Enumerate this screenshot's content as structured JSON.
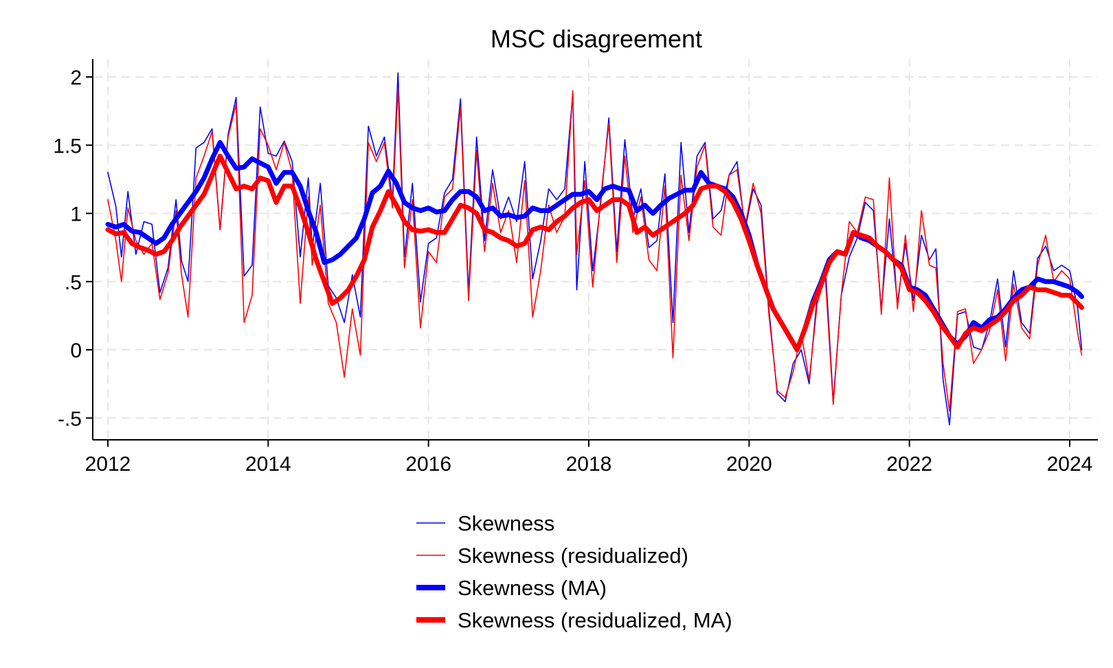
{
  "chart_data": {
    "type": "line",
    "title": "MSC disagreement",
    "xlabel": "",
    "ylabel": "",
    "xlim": [
      2012,
      2024.25
    ],
    "ylim": [
      -0.65,
      2.15
    ],
    "x_ticks": [
      {
        "value": 2012,
        "label": "2012"
      },
      {
        "value": 2014,
        "label": "2014"
      },
      {
        "value": 2016,
        "label": "2016"
      },
      {
        "value": 2018,
        "label": "2018"
      },
      {
        "value": 2020,
        "label": "2020"
      },
      {
        "value": 2022,
        "label": "2022"
      },
      {
        "value": 2024,
        "label": "2024"
      }
    ],
    "y_ticks": [
      {
        "value": 2,
        "label": "2"
      },
      {
        "value": 1.5,
        "label": "1.5"
      },
      {
        "value": 1,
        "label": "1"
      },
      {
        "value": 0.5,
        "label": ".5"
      },
      {
        "value": 0,
        "label": "0"
      },
      {
        "value": -0.5,
        "label": "-.5"
      }
    ],
    "grid": true,
    "legend_position": "bottom-center",
    "series": [
      {
        "name": "Skewness",
        "color": "#0000ff",
        "style": "thin",
        "x": [
          2012.0,
          2012.1,
          2012.17,
          2012.25,
          2012.35,
          2012.45,
          2012.55,
          2012.65,
          2012.75,
          2012.85,
          2012.92,
          2013.0,
          2013.1,
          2013.2,
          2013.3,
          2013.4,
          2013.5,
          2013.6,
          2013.7,
          2013.8,
          2013.9,
          2014.0,
          2014.1,
          2014.2,
          2014.3,
          2014.4,
          2014.5,
          2014.55,
          2014.65,
          2014.75,
          2014.85,
          2014.95,
          2015.05,
          2015.15,
          2015.25,
          2015.35,
          2015.45,
          2015.55,
          2015.62,
          2015.7,
          2015.8,
          2015.9,
          2016.0,
          2016.1,
          2016.2,
          2016.3,
          2016.4,
          2016.5,
          2016.6,
          2016.7,
          2016.8,
          2016.9,
          2017.0,
          2017.1,
          2017.2,
          2017.3,
          2017.4,
          2017.5,
          2017.6,
          2017.7,
          2017.8,
          2017.85,
          2017.95,
          2018.05,
          2018.15,
          2018.25,
          2018.35,
          2018.45,
          2018.55,
          2018.65,
          2018.75,
          2018.85,
          2018.95,
          2019.05,
          2019.15,
          2019.25,
          2019.35,
          2019.45,
          2019.55,
          2019.65,
          2019.75,
          2019.85,
          2019.95,
          2020.05,
          2020.15,
          2020.25,
          2020.35,
          2020.45,
          2020.55,
          2020.65,
          2020.75,
          2020.85,
          2020.95,
          2021.05,
          2021.15,
          2021.25,
          2021.35,
          2021.45,
          2021.55,
          2021.65,
          2021.75,
          2021.85,
          2021.95,
          2022.05,
          2022.15,
          2022.25,
          2022.33,
          2022.42,
          2022.5,
          2022.6,
          2022.7,
          2022.8,
          2022.9,
          2023.0,
          2023.1,
          2023.2,
          2023.3,
          2023.4,
          2023.5,
          2023.6,
          2023.7,
          2023.8,
          2023.9,
          2024.0,
          2024.1,
          2024.15
        ],
        "y": [
          1.3,
          1.05,
          0.68,
          1.16,
          0.7,
          0.94,
          0.92,
          0.42,
          0.6,
          1.1,
          0.65,
          0.5,
          1.48,
          1.52,
          1.62,
          0.88,
          1.58,
          1.85,
          0.54,
          0.62,
          1.78,
          1.44,
          1.42,
          1.53,
          1.38,
          0.68,
          1.26,
          0.74,
          1.22,
          0.47,
          0.38,
          0.2,
          0.55,
          0.24,
          1.64,
          1.42,
          1.56,
          1.1,
          2.03,
          0.68,
          1.22,
          0.35,
          0.78,
          0.82,
          1.15,
          1.25,
          1.84,
          0.42,
          1.56,
          0.8,
          1.32,
          0.96,
          1.12,
          0.94,
          1.38,
          0.52,
          0.8,
          1.18,
          1.1,
          1.18,
          1.88,
          0.44,
          1.38,
          0.58,
          1.08,
          1.7,
          0.72,
          1.54,
          0.96,
          1.18,
          0.75,
          0.8,
          1.29,
          0.2,
          1.52,
          0.86,
          1.42,
          1.52,
          0.96,
          1.02,
          1.28,
          1.38,
          0.88,
          1.18,
          1.06,
          0.28,
          -0.32,
          -0.38,
          -0.1,
          0.0,
          -0.25,
          0.4,
          0.62,
          -0.38,
          0.4,
          0.68,
          0.82,
          1.08,
          1.02,
          0.3,
          0.96,
          0.34,
          0.78,
          0.36,
          0.84,
          0.66,
          0.74,
          -0.22,
          -0.55,
          0.26,
          0.28,
          0.02,
          0.0,
          0.2,
          0.52,
          0.02,
          0.58,
          0.2,
          0.12,
          0.67,
          0.76,
          0.58,
          0.62,
          0.58,
          0.3,
          0.0
        ]
      },
      {
        "name": "Skewness (residualized)",
        "color": "#ff0000",
        "style": "thin",
        "x": [
          2012.0,
          2012.1,
          2012.17,
          2012.25,
          2012.35,
          2012.45,
          2012.55,
          2012.65,
          2012.75,
          2012.85,
          2012.92,
          2013.0,
          2013.1,
          2013.2,
          2013.3,
          2013.4,
          2013.5,
          2013.6,
          2013.7,
          2013.8,
          2013.9,
          2014.0,
          2014.1,
          2014.2,
          2014.3,
          2014.4,
          2014.5,
          2014.55,
          2014.65,
          2014.75,
          2014.85,
          2014.95,
          2015.05,
          2015.15,
          2015.25,
          2015.35,
          2015.45,
          2015.55,
          2015.62,
          2015.7,
          2015.8,
          2015.9,
          2016.0,
          2016.1,
          2016.2,
          2016.3,
          2016.4,
          2016.5,
          2016.6,
          2016.7,
          2016.8,
          2016.9,
          2017.0,
          2017.1,
          2017.2,
          2017.3,
          2017.4,
          2017.5,
          2017.6,
          2017.7,
          2017.8,
          2017.85,
          2017.95,
          2018.05,
          2018.15,
          2018.25,
          2018.35,
          2018.45,
          2018.55,
          2018.65,
          2018.75,
          2018.85,
          2018.95,
          2019.05,
          2019.15,
          2019.25,
          2019.35,
          2019.45,
          2019.55,
          2019.65,
          2019.75,
          2019.85,
          2019.95,
          2020.05,
          2020.15,
          2020.25,
          2020.35,
          2020.45,
          2020.55,
          2020.65,
          2020.75,
          2020.85,
          2020.95,
          2021.05,
          2021.15,
          2021.25,
          2021.35,
          2021.45,
          2021.55,
          2021.65,
          2021.75,
          2021.85,
          2021.95,
          2022.05,
          2022.15,
          2022.25,
          2022.33,
          2022.42,
          2022.5,
          2022.6,
          2022.7,
          2022.8,
          2022.9,
          2023.0,
          2023.1,
          2023.2,
          2023.3,
          2023.4,
          2023.5,
          2023.6,
          2023.7,
          2023.8,
          2023.9,
          2024.0,
          2024.1,
          2024.15
        ],
        "y": [
          1.1,
          0.8,
          0.5,
          1.04,
          0.8,
          0.7,
          0.78,
          0.37,
          0.56,
          1.02,
          0.55,
          0.24,
          1.26,
          1.42,
          1.6,
          0.88,
          1.56,
          1.8,
          0.2,
          0.4,
          1.62,
          1.5,
          1.32,
          1.52,
          1.3,
          0.34,
          1.12,
          0.62,
          1.06,
          0.34,
          0.2,
          -0.2,
          0.3,
          -0.04,
          1.52,
          1.38,
          1.52,
          1.04,
          1.92,
          0.6,
          1.1,
          0.16,
          0.72,
          0.64,
          1.12,
          1.18,
          1.78,
          0.36,
          1.46,
          0.72,
          1.22,
          0.86,
          1.02,
          0.64,
          1.24,
          0.24,
          0.58,
          1.06,
          0.86,
          0.98,
          1.9,
          0.7,
          1.24,
          0.46,
          1.12,
          1.66,
          0.64,
          1.42,
          0.86,
          1.12,
          0.66,
          0.58,
          1.2,
          -0.06,
          1.28,
          0.8,
          1.34,
          1.5,
          0.9,
          0.84,
          1.28,
          1.32,
          0.9,
          1.22,
          1.0,
          0.24,
          -0.3,
          -0.35,
          -0.16,
          0.12,
          -0.22,
          0.34,
          0.54,
          -0.4,
          0.4,
          0.94,
          0.86,
          1.12,
          1.1,
          0.26,
          1.26,
          0.3,
          0.84,
          0.28,
          1.02,
          0.62,
          0.6,
          -0.1,
          -0.45,
          0.28,
          0.3,
          -0.1,
          0.0,
          0.14,
          0.44,
          -0.08,
          0.48,
          0.16,
          0.08,
          0.62,
          0.84,
          0.5,
          0.58,
          0.52,
          0.12,
          -0.04
        ]
      },
      {
        "name": "Skewness (MA)",
        "color": "#0000ff",
        "style": "thick",
        "x": [
          2012.0,
          2012.1,
          2012.2,
          2012.3,
          2012.4,
          2012.5,
          2012.6,
          2012.7,
          2012.8,
          2012.9,
          2013.0,
          2013.1,
          2013.2,
          2013.3,
          2013.4,
          2013.5,
          2013.6,
          2013.7,
          2013.8,
          2013.9,
          2014.0,
          2014.1,
          2014.2,
          2014.3,
          2014.4,
          2014.5,
          2014.6,
          2014.7,
          2014.8,
          2014.9,
          2015.0,
          2015.1,
          2015.2,
          2015.3,
          2015.4,
          2015.5,
          2015.6,
          2015.7,
          2015.8,
          2015.9,
          2016.0,
          2016.1,
          2016.2,
          2016.3,
          2016.4,
          2016.5,
          2016.6,
          2016.7,
          2016.8,
          2016.9,
          2017.0,
          2017.1,
          2017.2,
          2017.3,
          2017.4,
          2017.5,
          2017.6,
          2017.7,
          2017.8,
          2017.9,
          2018.0,
          2018.1,
          2018.2,
          2018.3,
          2018.4,
          2018.5,
          2018.6,
          2018.7,
          2018.8,
          2018.9,
          2019.0,
          2019.1,
          2019.2,
          2019.3,
          2019.4,
          2019.5,
          2019.6,
          2019.7,
          2019.8,
          2019.9,
          2020.0,
          2020.1,
          2020.2,
          2020.3,
          2020.4,
          2020.5,
          2020.6,
          2020.7,
          2020.8,
          2020.9,
          2021.0,
          2021.1,
          2021.2,
          2021.3,
          2021.4,
          2021.5,
          2021.6,
          2021.7,
          2021.8,
          2021.9,
          2022.0,
          2022.1,
          2022.2,
          2022.3,
          2022.4,
          2022.5,
          2022.6,
          2022.7,
          2022.8,
          2022.9,
          2023.0,
          2023.1,
          2023.2,
          2023.3,
          2023.4,
          2023.5,
          2023.6,
          2023.7,
          2023.8,
          2023.9,
          2024.0,
          2024.1,
          2024.15
        ],
        "y": [
          0.92,
          0.9,
          0.92,
          0.87,
          0.86,
          0.82,
          0.78,
          0.82,
          0.92,
          1.0,
          1.08,
          1.16,
          1.26,
          1.4,
          1.52,
          1.42,
          1.33,
          1.34,
          1.4,
          1.37,
          1.34,
          1.22,
          1.3,
          1.3,
          1.2,
          1.02,
          0.86,
          0.64,
          0.66,
          0.7,
          0.76,
          0.82,
          0.96,
          1.15,
          1.2,
          1.31,
          1.22,
          1.08,
          1.04,
          1.02,
          1.04,
          1.01,
          1.02,
          1.1,
          1.16,
          1.16,
          1.12,
          1.02,
          1.04,
          0.98,
          0.99,
          0.97,
          0.98,
          1.04,
          1.02,
          1.02,
          1.06,
          1.1,
          1.14,
          1.14,
          1.16,
          1.1,
          1.18,
          1.2,
          1.18,
          1.17,
          1.02,
          1.06,
          1.0,
          1.06,
          1.11,
          1.14,
          1.17,
          1.17,
          1.3,
          1.22,
          1.2,
          1.18,
          1.12,
          1.0,
          0.84,
          0.62,
          0.46,
          0.3,
          0.2,
          0.1,
          0.0,
          0.16,
          0.36,
          0.5,
          0.66,
          0.72,
          0.7,
          0.86,
          0.82,
          0.8,
          0.76,
          0.72,
          0.66,
          0.62,
          0.46,
          0.44,
          0.4,
          0.3,
          0.2,
          0.1,
          0.04,
          0.1,
          0.2,
          0.16,
          0.22,
          0.24,
          0.3,
          0.38,
          0.44,
          0.46,
          0.52,
          0.5,
          0.5,
          0.48,
          0.46,
          0.42,
          0.39
        ]
      },
      {
        "name": "Skewness (residualized, MA)",
        "color": "#ff0000",
        "style": "thick",
        "x": [
          2012.0,
          2012.1,
          2012.2,
          2012.3,
          2012.4,
          2012.5,
          2012.6,
          2012.7,
          2012.8,
          2012.9,
          2013.0,
          2013.1,
          2013.2,
          2013.3,
          2013.4,
          2013.5,
          2013.6,
          2013.7,
          2013.8,
          2013.9,
          2014.0,
          2014.1,
          2014.2,
          2014.3,
          2014.4,
          2014.5,
          2014.6,
          2014.7,
          2014.8,
          2014.9,
          2015.0,
          2015.1,
          2015.2,
          2015.3,
          2015.4,
          2015.5,
          2015.6,
          2015.7,
          2015.8,
          2015.9,
          2016.0,
          2016.1,
          2016.2,
          2016.3,
          2016.4,
          2016.5,
          2016.6,
          2016.7,
          2016.8,
          2016.9,
          2017.0,
          2017.1,
          2017.2,
          2017.3,
          2017.4,
          2017.5,
          2017.6,
          2017.7,
          2017.8,
          2017.9,
          2018.0,
          2018.1,
          2018.2,
          2018.3,
          2018.4,
          2018.5,
          2018.6,
          2018.7,
          2018.8,
          2018.9,
          2019.0,
          2019.1,
          2019.2,
          2019.3,
          2019.4,
          2019.5,
          2019.6,
          2019.7,
          2019.8,
          2019.9,
          2020.0,
          2020.1,
          2020.2,
          2020.3,
          2020.4,
          2020.5,
          2020.6,
          2020.7,
          2020.8,
          2020.9,
          2021.0,
          2021.1,
          2021.2,
          2021.3,
          2021.4,
          2021.5,
          2021.6,
          2021.7,
          2021.8,
          2021.9,
          2022.0,
          2022.1,
          2022.2,
          2022.3,
          2022.4,
          2022.5,
          2022.6,
          2022.7,
          2022.8,
          2022.9,
          2023.0,
          2023.1,
          2023.2,
          2023.3,
          2023.4,
          2023.5,
          2023.6,
          2023.7,
          2023.8,
          2023.9,
          2024.0,
          2024.1,
          2024.15
        ],
        "y": [
          0.88,
          0.85,
          0.86,
          0.78,
          0.75,
          0.73,
          0.7,
          0.72,
          0.8,
          0.9,
          0.98,
          1.06,
          1.14,
          1.28,
          1.42,
          1.3,
          1.18,
          1.2,
          1.18,
          1.26,
          1.24,
          1.08,
          1.2,
          1.2,
          1.04,
          0.86,
          0.66,
          0.5,
          0.34,
          0.38,
          0.44,
          0.54,
          0.66,
          0.9,
          1.02,
          1.16,
          1.06,
          0.94,
          0.88,
          0.87,
          0.88,
          0.86,
          0.86,
          0.96,
          1.06,
          1.04,
          1.0,
          0.88,
          0.86,
          0.82,
          0.8,
          0.76,
          0.78,
          0.88,
          0.9,
          0.88,
          0.94,
          0.98,
          1.04,
          1.08,
          1.1,
          1.02,
          1.06,
          1.1,
          1.1,
          1.06,
          0.86,
          0.9,
          0.84,
          0.88,
          0.92,
          0.96,
          1.0,
          1.06,
          1.18,
          1.2,
          1.2,
          1.16,
          1.08,
          0.96,
          0.8,
          0.62,
          0.46,
          0.3,
          0.2,
          0.1,
          0.0,
          0.16,
          0.34,
          0.48,
          0.64,
          0.72,
          0.7,
          0.86,
          0.84,
          0.82,
          0.76,
          0.72,
          0.66,
          0.6,
          0.44,
          0.42,
          0.36,
          0.28,
          0.18,
          0.1,
          0.02,
          0.12,
          0.16,
          0.14,
          0.18,
          0.22,
          0.28,
          0.36,
          0.4,
          0.46,
          0.44,
          0.44,
          0.42,
          0.4,
          0.4,
          0.34,
          0.31
        ]
      }
    ]
  }
}
